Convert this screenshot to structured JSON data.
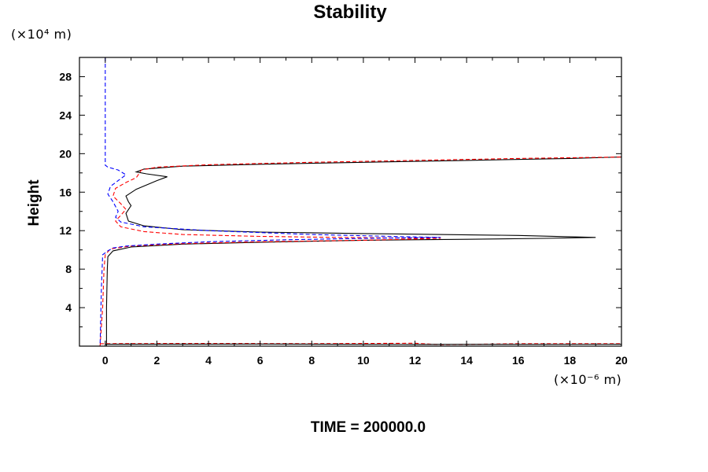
{
  "chart_data": {
    "type": "line",
    "title": "Stability",
    "ylabel": "Height",
    "xlabel": "",
    "y_unit": "(×10⁴ m)",
    "x_unit": "(×10⁻⁶ m)",
    "footer": "TIME = 200000.0",
    "xlim": [
      -1,
      20
    ],
    "ylim": [
      0,
      30
    ],
    "xticks": [
      0,
      2,
      4,
      6,
      8,
      10,
      12,
      14,
      16,
      18,
      20
    ],
    "yticks": [
      4,
      8,
      12,
      16,
      20,
      24,
      28
    ],
    "xtick_labels": [
      "0",
      "2",
      "4",
      "6",
      "8",
      "10",
      "12",
      "14",
      "16",
      "18",
      "20"
    ],
    "ytick_labels": [
      "4",
      "8",
      "12",
      "16",
      "20",
      "24",
      "28"
    ],
    "grid": false,
    "legend": "none",
    "series": [
      {
        "style": "solid",
        "color": "#000000",
        "points": [
          [
            0.05,
            0
          ],
          [
            0.05,
            1
          ],
          [
            0.05,
            4
          ],
          [
            0.08,
            8
          ],
          [
            0.1,
            9.3
          ],
          [
            0.3,
            9.9
          ],
          [
            1,
            10.3
          ],
          [
            3,
            10.6
          ],
          [
            6,
            10.8
          ],
          [
            10,
            11
          ],
          [
            14,
            11.1
          ],
          [
            17,
            11.2
          ],
          [
            19,
            11.3
          ],
          [
            16,
            11.5
          ],
          [
            10,
            11.7
          ],
          [
            6,
            11.85
          ],
          [
            3,
            12.1
          ],
          [
            1.5,
            12.5
          ],
          [
            0.9,
            13
          ],
          [
            0.8,
            13.8
          ],
          [
            1,
            14.6
          ],
          [
            0.9,
            15
          ],
          [
            0.8,
            15.6
          ],
          [
            1.2,
            16.3
          ],
          [
            2,
            17.2
          ],
          [
            2.4,
            17.6
          ],
          [
            1.6,
            17.9
          ],
          [
            1.2,
            18.1
          ],
          [
            1.5,
            18.4
          ],
          [
            3,
            18.7
          ],
          [
            6,
            18.9
          ],
          [
            10,
            19.1
          ],
          [
            14,
            19.3
          ],
          [
            18,
            19.5
          ],
          [
            20,
            19.65
          ]
        ]
      },
      {
        "style": "dashed",
        "color": "#ff0000",
        "points": [
          [
            -0.2,
            0
          ],
          [
            -0.1,
            4
          ],
          [
            -0.05,
            8
          ],
          [
            0,
            9.5
          ],
          [
            0.2,
            10.1
          ],
          [
            1,
            10.4
          ],
          [
            3,
            10.65
          ],
          [
            6,
            10.85
          ],
          [
            10,
            11
          ],
          [
            13,
            11.2
          ],
          [
            9,
            11.3
          ],
          [
            6,
            11.4
          ],
          [
            3,
            11.6
          ],
          [
            1.5,
            11.9
          ],
          [
            0.6,
            12.4
          ],
          [
            0.4,
            13
          ],
          [
            0.6,
            13.6
          ],
          [
            0.8,
            14.2
          ],
          [
            0.6,
            14.8
          ],
          [
            0.3,
            15.6
          ],
          [
            0.4,
            16.4
          ],
          [
            0.8,
            17
          ],
          [
            1.2,
            17.5
          ],
          [
            1.3,
            17.9
          ],
          [
            1.4,
            18.3
          ],
          [
            2,
            18.6
          ],
          [
            4,
            18.85
          ],
          [
            8,
            19.1
          ],
          [
            12,
            19.3
          ],
          [
            16,
            19.5
          ],
          [
            20,
            19.65
          ]
        ]
      },
      {
        "style": "dashed",
        "color": "#0000ff",
        "points": [
          [
            0,
            30
          ],
          [
            0,
            18.8
          ],
          [
            0.1,
            18.6
          ],
          [
            0.5,
            18.3
          ],
          [
            0.8,
            17.8
          ],
          [
            0.5,
            17.2
          ],
          [
            0.2,
            16.6
          ],
          [
            0.1,
            15.8
          ],
          [
            0.3,
            15
          ],
          [
            0.5,
            14
          ],
          [
            0.4,
            13.4
          ],
          [
            0.6,
            12.9
          ],
          [
            1.5,
            12.4
          ],
          [
            4,
            12
          ],
          [
            8,
            11.6
          ],
          [
            12,
            11.35
          ],
          [
            13,
            11.3
          ],
          [
            10,
            11.2
          ],
          [
            7,
            11.05
          ],
          [
            4,
            10.85
          ],
          [
            2,
            10.6
          ],
          [
            0.8,
            10.4
          ],
          [
            0.3,
            10.2
          ],
          [
            0.1,
            9.9
          ],
          [
            -0.1,
            9.5
          ],
          [
            -0.15,
            6
          ],
          [
            -0.2,
            0
          ]
        ]
      },
      {
        "style": "dashed",
        "color": "#ff0000",
        "points": [
          [
            -0.2,
            0.25
          ],
          [
            4,
            0.28
          ],
          [
            8,
            0.25
          ],
          [
            12,
            0.3
          ],
          [
            13,
            0.15
          ],
          [
            16,
            0.25
          ],
          [
            20,
            0.25
          ]
        ]
      },
      {
        "style": "solid",
        "color": "#000000",
        "points": [
          [
            0,
            0.2
          ],
          [
            6,
            0.22
          ],
          [
            12,
            0.18
          ],
          [
            20,
            0.2
          ]
        ]
      }
    ]
  }
}
